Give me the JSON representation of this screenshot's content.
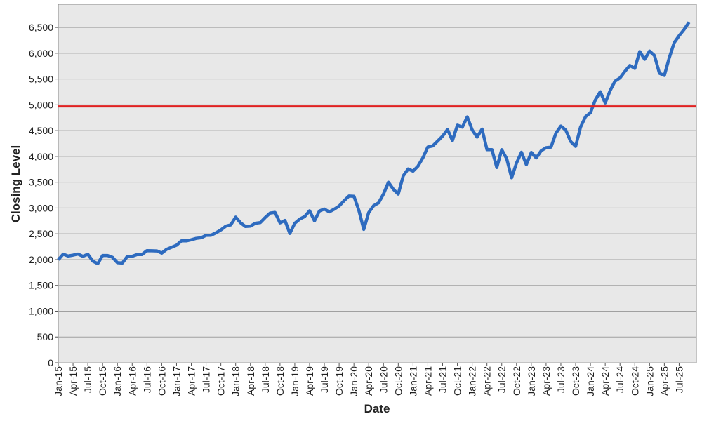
{
  "chart_data": {
    "type": "line",
    "x_label": "Date",
    "y_label": "Closing Level",
    "categories": [
      "Jan-15",
      null,
      null,
      "Apr-15",
      null,
      null,
      "Jul-15",
      null,
      null,
      "Oct-15",
      null,
      null,
      "Jan-16",
      null,
      null,
      "Apr-16",
      null,
      null,
      "Jul-16",
      null,
      null,
      "Oct-16",
      null,
      null,
      "Jan-17",
      null,
      null,
      "Apr-17",
      null,
      null,
      "Jul-17",
      null,
      null,
      "Oct-17",
      null,
      null,
      "Jan-18",
      null,
      null,
      "Apr-18",
      null,
      null,
      "Jul-18",
      null,
      null,
      "Oct-18",
      null,
      null,
      "Jan-19",
      null,
      null,
      "Apr-19",
      null,
      null,
      "Jul-19",
      null,
      null,
      "Oct-19",
      null,
      null,
      "Jan-20",
      null,
      null,
      "Apr-20",
      null,
      null,
      "Jul-20",
      null,
      null,
      "Oct-20",
      null,
      null,
      "Jan-21",
      null,
      null,
      "Apr-21",
      null,
      null,
      "Jul-21",
      null,
      null,
      "Oct-21",
      null,
      null,
      "Jan-22",
      null,
      null,
      "Apr-22",
      null,
      null,
      "Jul-22",
      null,
      null,
      "Oct-22",
      null,
      null,
      "Jan-23",
      null,
      null,
      "Apr-23",
      null,
      null,
      "Jul-23",
      null,
      null,
      "Oct-23",
      null,
      null,
      "Jan-24",
      null,
      null,
      "Apr-24",
      null,
      null,
      "Jul-24",
      null,
      null,
      "Oct-24",
      null,
      null,
      "Jan-25",
      null,
      null,
      "Apr-25",
      null,
      null,
      "Jul-25",
      null,
      null
    ],
    "values": [
      1995,
      2105,
      2068,
      2086,
      2107,
      2063,
      2104,
      1972,
      1920,
      2079,
      2080,
      2044,
      1940,
      1932,
      2060,
      2065,
      2097,
      2099,
      2174,
      2171,
      2168,
      2126,
      2199,
      2239,
      2279,
      2364,
      2363,
      2384,
      2412,
      2423,
      2470,
      2472,
      2519,
      2575,
      2648,
      2674,
      2824,
      2714,
      2641,
      2648,
      2705,
      2718,
      2816,
      2902,
      2914,
      2712,
      2760,
      2507,
      2704,
      2784,
      2834,
      2946,
      2752,
      2942,
      2980,
      2926,
      2977,
      3038,
      3141,
      3231,
      3226,
      2954,
      2585,
      2912,
      3044,
      3100,
      3271,
      3500,
      3363,
      3270,
      3622,
      3756,
      3714,
      3811,
      3973,
      4181,
      4204,
      4298,
      4395,
      4523,
      4308,
      4605,
      4567,
      4766,
      4516,
      4374,
      4530,
      4132,
      4132,
      3785,
      4130,
      3955,
      3586,
      3872,
      4080,
      3840,
      4077,
      3970,
      4109,
      4169,
      4180,
      4450,
      4589,
      4508,
      4288,
      4194,
      4568,
      4770,
      4846,
      5096,
      5254,
      5036,
      5278,
      5460,
      5522,
      5648,
      5762,
      5705,
      6032,
      5882,
      6041,
      5955,
      5612,
      5569,
      5912,
      6205,
      6339,
      6460,
      6600
    ],
    "color": "#2e6bbf",
    "reference_line": 4970,
    "reference_color": "#e02020",
    "ylim": [
      0,
      6950
    ],
    "yticks": [
      0,
      500,
      {
        "value": 1000,
        "label": "1,000"
      },
      {
        "value": 1500,
        "label": "1,500"
      },
      {
        "value": 2000,
        "label": "2,000"
      },
      {
        "value": 2500,
        "label": "2,500"
      },
      {
        "value": 3000,
        "label": "3,000"
      },
      {
        "value": 3500,
        "label": "3,500"
      },
      {
        "value": 4000,
        "label": "4,000"
      },
      {
        "value": 4500,
        "label": "4,500"
      },
      {
        "value": 5000,
        "label": "5,000"
      },
      {
        "value": 5500,
        "label": "5,500"
      },
      {
        "value": 6000,
        "label": "6,000"
      },
      {
        "value": 6500,
        "label": "6,500"
      }
    ],
    "grid": true
  }
}
